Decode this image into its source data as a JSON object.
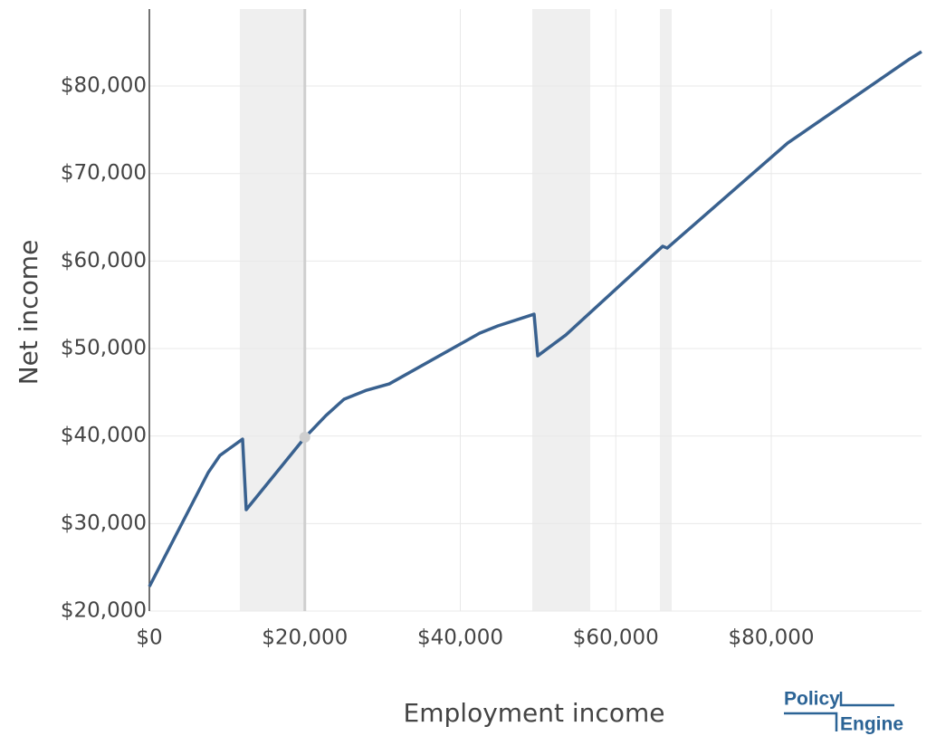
{
  "chart_data": {
    "type": "line",
    "x_label": "Employment income",
    "y_label": "Net income",
    "x": [
      0,
      7570,
      9080,
      11990,
      12460,
      20030,
      22710,
      25040,
      27950,
      30860,
      42500,
      44830,
      49490,
      49960,
      53570,
      66030,
      66610,
      82100,
      97820,
      99330
    ],
    "series": [
      {
        "name": "Net income",
        "color": "#39618f",
        "values": [
          22800,
          35830,
          37790,
          39650,
          31590,
          39860,
          42340,
          44210,
          45240,
          45960,
          51760,
          52590,
          53930,
          49170,
          51550,
          61690,
          61480,
          73480,
          83100,
          83930
        ]
      }
    ],
    "shaded_regions": [
      [
        11640,
        20030
      ],
      [
        49260,
        56710
      ],
      [
        65680,
        67190
      ]
    ],
    "shade_color": "#efefef",
    "highlight": {
      "x": 20000,
      "y": 39860,
      "color": "#cfcfcf"
    },
    "xlim": [
      0,
      99330
    ],
    "ylim": [
      20000,
      88800
    ],
    "xticks": [
      {
        "value": 0,
        "label": "$0"
      },
      {
        "value": 20000,
        "label": "$20,000"
      },
      {
        "value": 40000,
        "label": "$40,000"
      },
      {
        "value": 60000,
        "label": "$60,000"
      },
      {
        "value": 80000,
        "label": "$80,000"
      }
    ],
    "yticks": [
      {
        "value": 20000,
        "label": "$20,000"
      },
      {
        "value": 30000,
        "label": "$30,000"
      },
      {
        "value": 40000,
        "label": "$40,000"
      },
      {
        "value": 50000,
        "label": "$50,000"
      },
      {
        "value": 60000,
        "label": "$60,000"
      },
      {
        "value": 70000,
        "label": "$70,000"
      },
      {
        "value": 80000,
        "label": "$80,000"
      }
    ],
    "grid": true
  },
  "logo": {
    "top": "Policy",
    "bottom": "Engine"
  }
}
